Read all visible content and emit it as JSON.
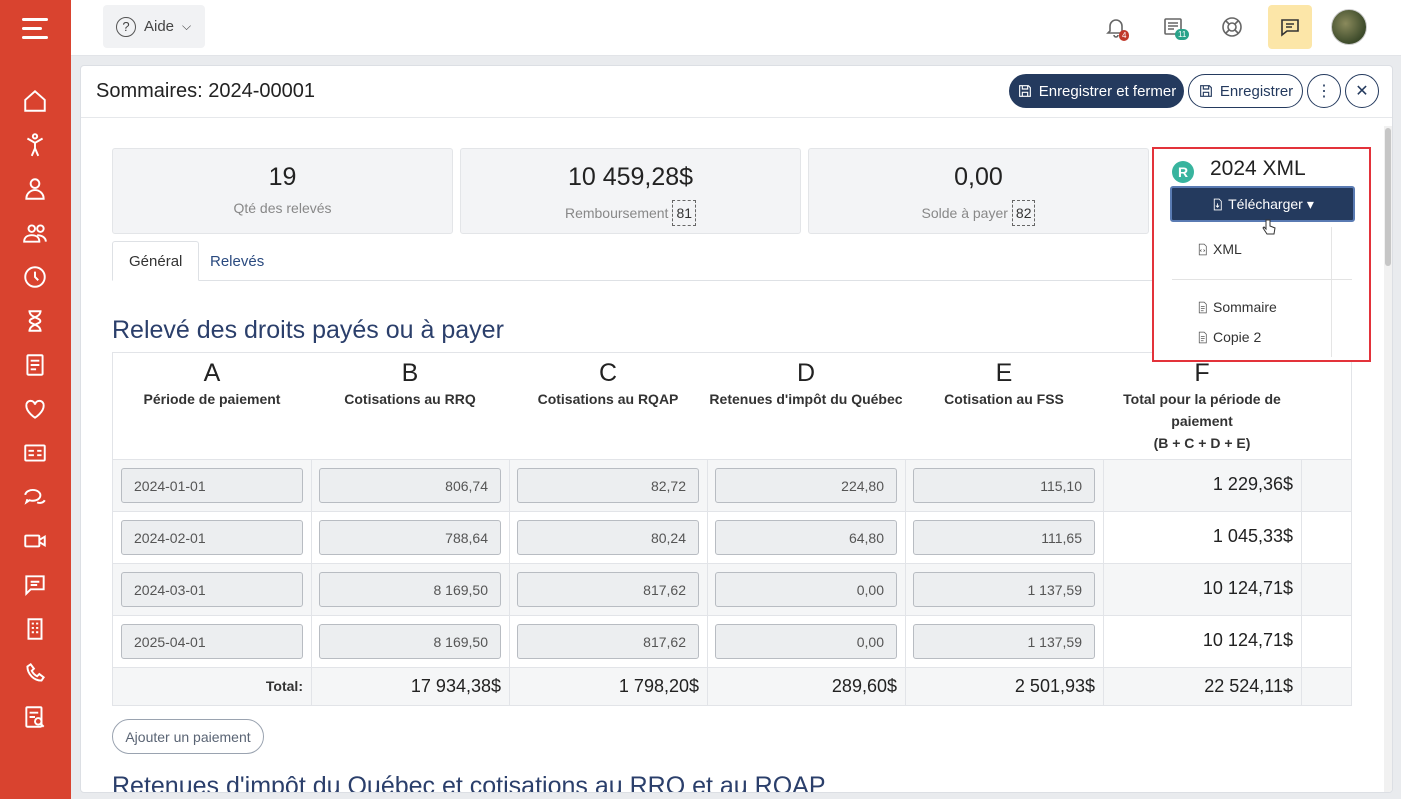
{
  "topbar": {
    "help_label": "Aide",
    "notifications_count": "4",
    "news_count": "11"
  },
  "panel": {
    "title": "Sommaires: 2024-00001",
    "save_close_label": "Enregistrer et fermer",
    "save_label": "Enregistrer"
  },
  "stats": [
    {
      "value": "19",
      "label": "Qté des relevés",
      "code": ""
    },
    {
      "value": "10 459,28$",
      "label": "Remboursement",
      "code": "81"
    },
    {
      "value": "0,00",
      "label": "Solde à payer",
      "code": "82"
    }
  ],
  "xml": {
    "badge": "R",
    "title": "2024 XML",
    "download_label": "Télécharger",
    "menu": [
      "XML",
      "Sommaire",
      "Copie 2"
    ]
  },
  "tabs": [
    "Général",
    "Relevés"
  ],
  "section1_title": "Relevé des droits payés ou à payer",
  "section2_title": "Retenues d'impôt du Québec et cotisations au RRQ et au RQAP",
  "table": {
    "columns": [
      {
        "letter": "A",
        "label": "Période de paiement"
      },
      {
        "letter": "B",
        "label": "Cotisations au RRQ"
      },
      {
        "letter": "C",
        "label": "Cotisations au RQAP"
      },
      {
        "letter": "D",
        "label": "Retenues d'impôt du Québec"
      },
      {
        "letter": "E",
        "label": "Cotisation au FSS"
      },
      {
        "letter": "F",
        "label": "Total pour la période de paiement",
        "sub": "(B + C + D + E)"
      }
    ],
    "rows": [
      {
        "period": "2024-01-01",
        "b": "806,74",
        "c": "82,72",
        "d": "224,80",
        "e": "115,10",
        "f": "1 229,36$"
      },
      {
        "period": "2024-02-01",
        "b": "788,64",
        "c": "80,24",
        "d": "64,80",
        "e": "111,65",
        "f": "1 045,33$"
      },
      {
        "period": "2024-03-01",
        "b": "8 169,50",
        "c": "817,62",
        "d": "0,00",
        "e": "1 137,59",
        "f": "10 124,71$"
      },
      {
        "period": "2025-04-01",
        "b": "8 169,50",
        "c": "817,62",
        "d": "0,00",
        "e": "1 137,59",
        "f": "10 124,71$"
      }
    ],
    "total_label": "Total:",
    "totals": {
      "b": "17 934,38$",
      "c": "1 798,20$",
      "d": "289,60$",
      "e": "2 501,93$",
      "f": "22 524,11$"
    }
  },
  "add_payment_label": "Ajouter un paiement",
  "colors": {
    "sidebar": "#d9432f",
    "primary": "#243a5e",
    "highlight": "#e3323a",
    "title": "#2b3f6b"
  }
}
